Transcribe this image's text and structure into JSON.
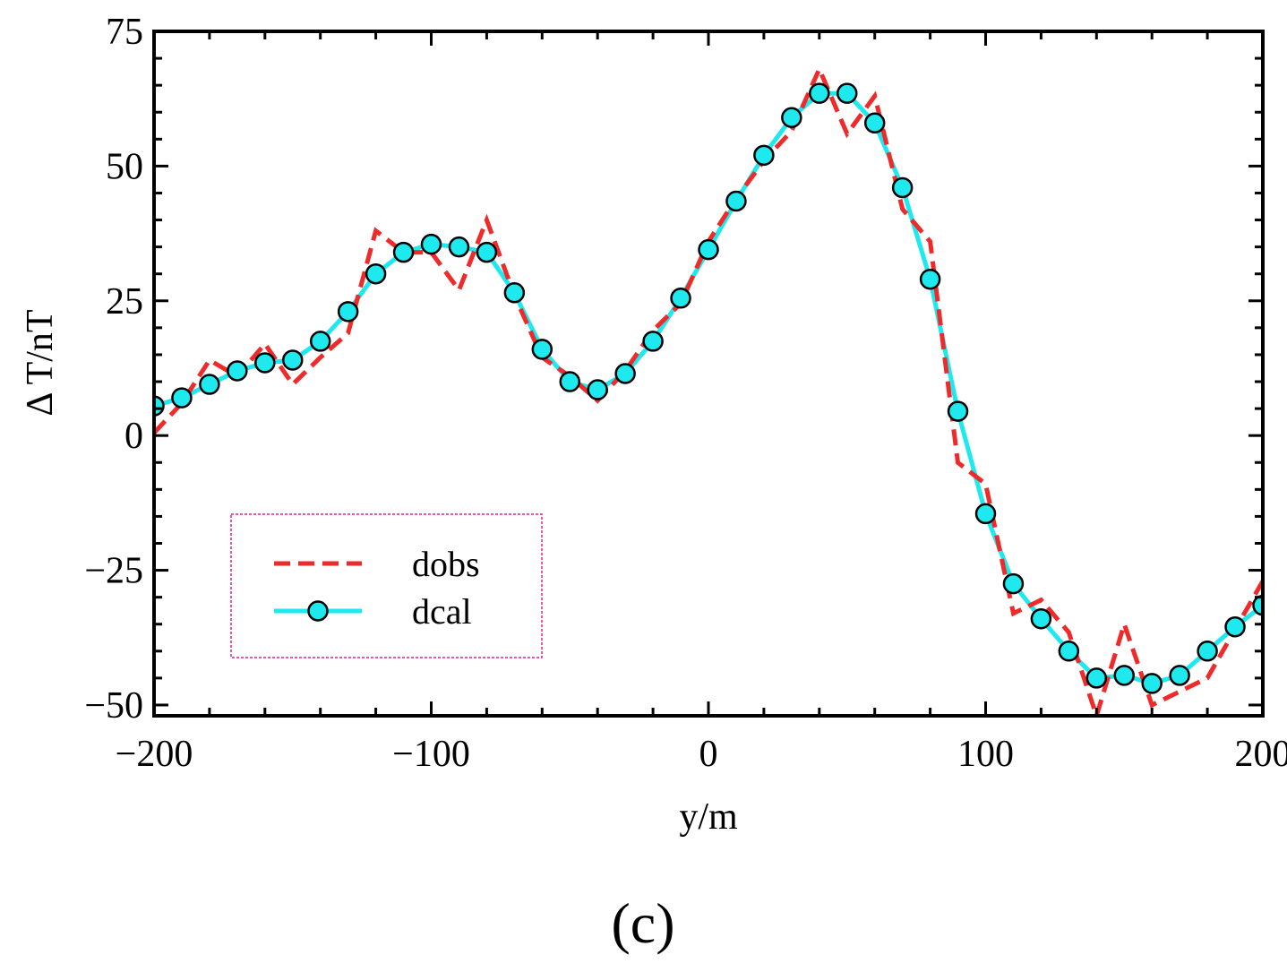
{
  "chart_data": {
    "type": "line",
    "xlabel": "y/m",
    "ylabel": "Δ T/nT",
    "panel_label": "(c)",
    "xlim": [
      -200,
      200
    ],
    "ylim": [
      -52,
      75
    ],
    "xticks": [
      -200,
      -100,
      0,
      100,
      200
    ],
    "xtick_labels": [
      "−200",
      "−100",
      "0",
      "100",
      "200"
    ],
    "yticks": [
      -50,
      -25,
      0,
      25,
      50,
      75
    ],
    "ytick_labels": [
      "−50",
      "−25",
      "0",
      "25",
      "50",
      "75"
    ],
    "grid": false,
    "legend_position": "lower-left",
    "legend_border_color": "#e0218a",
    "series": [
      {
        "name": "dobs",
        "style": "dashed",
        "color": "#ee2a2a",
        "x": [
          -200,
          -190,
          -180,
          -170,
          -160,
          -150,
          -140,
          -130,
          -120,
          -110,
          -100,
          -90,
          -80,
          -70,
          -60,
          -50,
          -40,
          -30,
          -20,
          -10,
          0,
          10,
          20,
          30,
          40,
          50,
          60,
          70,
          80,
          90,
          100,
          110,
          120,
          130,
          140,
          150,
          160,
          170,
          180,
          190,
          200
        ],
        "y": [
          0.5,
          6,
          14,
          11,
          17,
          9.5,
          14.5,
          19,
          38,
          34,
          34,
          27,
          40,
          26,
          14.5,
          11,
          6.5,
          12,
          19.5,
          24.5,
          36,
          44,
          51,
          56.5,
          68,
          56,
          63,
          42,
          36,
          -5,
          -9,
          -33,
          -30.5,
          -36.5,
          -52,
          -35,
          -50,
          -47.5,
          -45,
          -36,
          -27
        ]
      },
      {
        "name": "dcal",
        "style": "solid-with-circle-markers",
        "color": "#1de9ef",
        "marker_fill": "#1de9ef",
        "marker_edge": "#000000",
        "x": [
          -200,
          -190,
          -180,
          -170,
          -160,
          -150,
          -140,
          -130,
          -120,
          -110,
          -100,
          -90,
          -80,
          -70,
          -60,
          -50,
          -40,
          -30,
          -20,
          -10,
          0,
          10,
          20,
          30,
          40,
          50,
          60,
          70,
          80,
          90,
          100,
          110,
          120,
          130,
          140,
          150,
          160,
          170,
          180,
          190,
          200
        ],
        "y": [
          5.5,
          7,
          9.5,
          12,
          13.5,
          14,
          17.5,
          23,
          30,
          34,
          35.5,
          35,
          34,
          26.5,
          16,
          10,
          8.5,
          11.5,
          17.5,
          25.5,
          34.5,
          43.5,
          52,
          59,
          63.5,
          63.5,
          58,
          46,
          29,
          4.5,
          -14.5,
          -27.5,
          -34,
          -40,
          -45,
          -44.5,
          -46,
          -44.5,
          -40,
          -35.5,
          -31.5
        ]
      }
    ]
  }
}
